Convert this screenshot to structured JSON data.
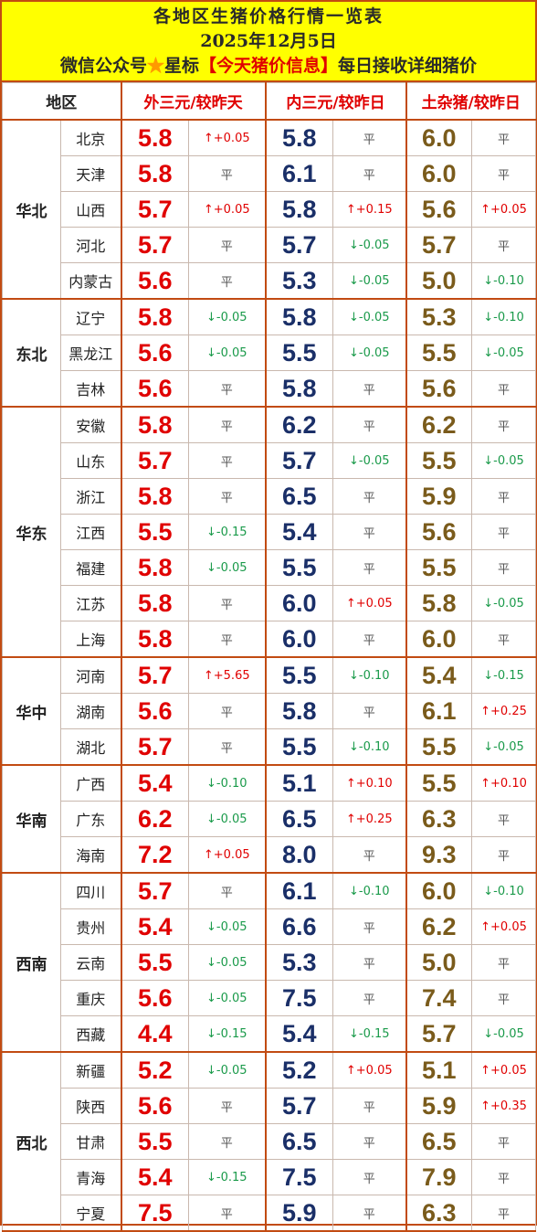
{
  "header": {
    "title": "各地区生猪价格行情一览表",
    "date": "2025年12月5日",
    "promo_prefix": "微信公众号",
    "promo_star": "★",
    "promo_mid": "星标",
    "promo_brand": "【今天猪价信息】",
    "promo_suffix": "每日接收详细猪价"
  },
  "columns": {
    "region": "地区",
    "col1": "外三元/较昨天",
    "col2": "内三元/较昨日",
    "col3": "土杂猪/较昨日"
  },
  "colors": {
    "border": "#c24b12",
    "header_bg": "#ffff00",
    "price1": "#e00000",
    "price2": "#1a2f68",
    "price3": "#7a5b1b",
    "up": "#e00000",
    "down": "#1a9a4a"
  },
  "regions": [
    {
      "name": "华北",
      "rows": [
        {
          "prov": "北京",
          "p1": "5.8",
          "c1": "↑+0.05",
          "p2": "5.8",
          "c2": "平",
          "p3": "6.0",
          "c3": "平"
        },
        {
          "prov": "天津",
          "p1": "5.8",
          "c1": "平",
          "p2": "6.1",
          "c2": "平",
          "p3": "6.0",
          "c3": "平"
        },
        {
          "prov": "山西",
          "p1": "5.7",
          "c1": "↑+0.05",
          "p2": "5.8",
          "c2": "↑+0.15",
          "p3": "5.6",
          "c3": "↑+0.05"
        },
        {
          "prov": "河北",
          "p1": "5.7",
          "c1": "平",
          "p2": "5.7",
          "c2": "↓-0.05",
          "p3": "5.7",
          "c3": "平"
        },
        {
          "prov": "内蒙古",
          "p1": "5.6",
          "c1": "平",
          "p2": "5.3",
          "c2": "↓-0.05",
          "p3": "5.0",
          "c3": "↓-0.10"
        }
      ]
    },
    {
      "name": "东北",
      "rows": [
        {
          "prov": "辽宁",
          "p1": "5.8",
          "c1": "↓-0.05",
          "p2": "5.8",
          "c2": "↓-0.05",
          "p3": "5.3",
          "c3": "↓-0.10"
        },
        {
          "prov": "黑龙江",
          "p1": "5.6",
          "c1": "↓-0.05",
          "p2": "5.5",
          "c2": "↓-0.05",
          "p3": "5.5",
          "c3": "↓-0.05"
        },
        {
          "prov": "吉林",
          "p1": "5.6",
          "c1": "平",
          "p2": "5.8",
          "c2": "平",
          "p3": "5.6",
          "c3": "平"
        }
      ]
    },
    {
      "name": "华东",
      "rows": [
        {
          "prov": "安徽",
          "p1": "5.8",
          "c1": "平",
          "p2": "6.2",
          "c2": "平",
          "p3": "6.2",
          "c3": "平"
        },
        {
          "prov": "山东",
          "p1": "5.7",
          "c1": "平",
          "p2": "5.7",
          "c2": "↓-0.05",
          "p3": "5.5",
          "c3": "↓-0.05"
        },
        {
          "prov": "浙江",
          "p1": "5.8",
          "c1": "平",
          "p2": "6.5",
          "c2": "平",
          "p3": "5.9",
          "c3": "平"
        },
        {
          "prov": "江西",
          "p1": "5.5",
          "c1": "↓-0.15",
          "p2": "5.4",
          "c2": "平",
          "p3": "5.6",
          "c3": "平"
        },
        {
          "prov": "福建",
          "p1": "5.8",
          "c1": "↓-0.05",
          "p2": "5.5",
          "c2": "平",
          "p3": "5.5",
          "c3": "平"
        },
        {
          "prov": "江苏",
          "p1": "5.8",
          "c1": "平",
          "p2": "6.0",
          "c2": "↑+0.05",
          "p3": "5.8",
          "c3": "↓-0.05"
        },
        {
          "prov": "上海",
          "p1": "5.8",
          "c1": "平",
          "p2": "6.0",
          "c2": "平",
          "p3": "6.0",
          "c3": "平"
        }
      ]
    },
    {
      "name": "华中",
      "rows": [
        {
          "prov": "河南",
          "p1": "5.7",
          "c1": "↑+5.65",
          "p2": "5.5",
          "c2": "↓-0.10",
          "p3": "5.4",
          "c3": "↓-0.15"
        },
        {
          "prov": "湖南",
          "p1": "5.6",
          "c1": "平",
          "p2": "5.8",
          "c2": "平",
          "p3": "6.1",
          "c3": "↑+0.25"
        },
        {
          "prov": "湖北",
          "p1": "5.7",
          "c1": "平",
          "p2": "5.5",
          "c2": "↓-0.10",
          "p3": "5.5",
          "c3": "↓-0.05"
        }
      ]
    },
    {
      "name": "华南",
      "rows": [
        {
          "prov": "广西",
          "p1": "5.4",
          "c1": "↓-0.10",
          "p2": "5.1",
          "c2": "↑+0.10",
          "p3": "5.5",
          "c3": "↑+0.10"
        },
        {
          "prov": "广东",
          "p1": "6.2",
          "c1": "↓-0.05",
          "p2": "6.5",
          "c2": "↑+0.25",
          "p3": "6.3",
          "c3": "平"
        },
        {
          "prov": "海南",
          "p1": "7.2",
          "c1": "↑+0.05",
          "p2": "8.0",
          "c2": "平",
          "p3": "9.3",
          "c3": "平"
        }
      ]
    },
    {
      "name": "西南",
      "rows": [
        {
          "prov": "四川",
          "p1": "5.7",
          "c1": "平",
          "p2": "6.1",
          "c2": "↓-0.10",
          "p3": "6.0",
          "c3": "↓-0.10"
        },
        {
          "prov": "贵州",
          "p1": "5.4",
          "c1": "↓-0.05",
          "p2": "6.6",
          "c2": "平",
          "p3": "6.2",
          "c3": "↑+0.05"
        },
        {
          "prov": "云南",
          "p1": "5.5",
          "c1": "↓-0.05",
          "p2": "5.3",
          "c2": "平",
          "p3": "5.0",
          "c3": "平"
        },
        {
          "prov": "重庆",
          "p1": "5.6",
          "c1": "↓-0.05",
          "p2": "7.5",
          "c2": "平",
          "p3": "7.4",
          "c3": "平"
        },
        {
          "prov": "西藏",
          "p1": "4.4",
          "c1": "↓-0.15",
          "p2": "5.4",
          "c2": "↓-0.15",
          "p3": "5.7",
          "c3": "↓-0.05"
        }
      ]
    },
    {
      "name": "西北",
      "rows": [
        {
          "prov": "新疆",
          "p1": "5.2",
          "c1": "↓-0.05",
          "p2": "5.2",
          "c2": "↑+0.05",
          "p3": "5.1",
          "c3": "↑+0.05"
        },
        {
          "prov": "陕西",
          "p1": "5.6",
          "c1": "平",
          "p2": "5.7",
          "c2": "平",
          "p3": "5.9",
          "c3": "↑+0.35"
        },
        {
          "prov": "甘肃",
          "p1": "5.5",
          "c1": "平",
          "p2": "6.5",
          "c2": "平",
          "p3": "6.5",
          "c3": "平"
        },
        {
          "prov": "青海",
          "p1": "5.4",
          "c1": "↓-0.15",
          "p2": "7.5",
          "c2": "平",
          "p3": "7.9",
          "c3": "平"
        },
        {
          "prov": "宁夏",
          "p1": "7.5",
          "c1": "平",
          "p2": "5.9",
          "c2": "平",
          "p3": "6.3",
          "c3": "平"
        }
      ]
    }
  ]
}
